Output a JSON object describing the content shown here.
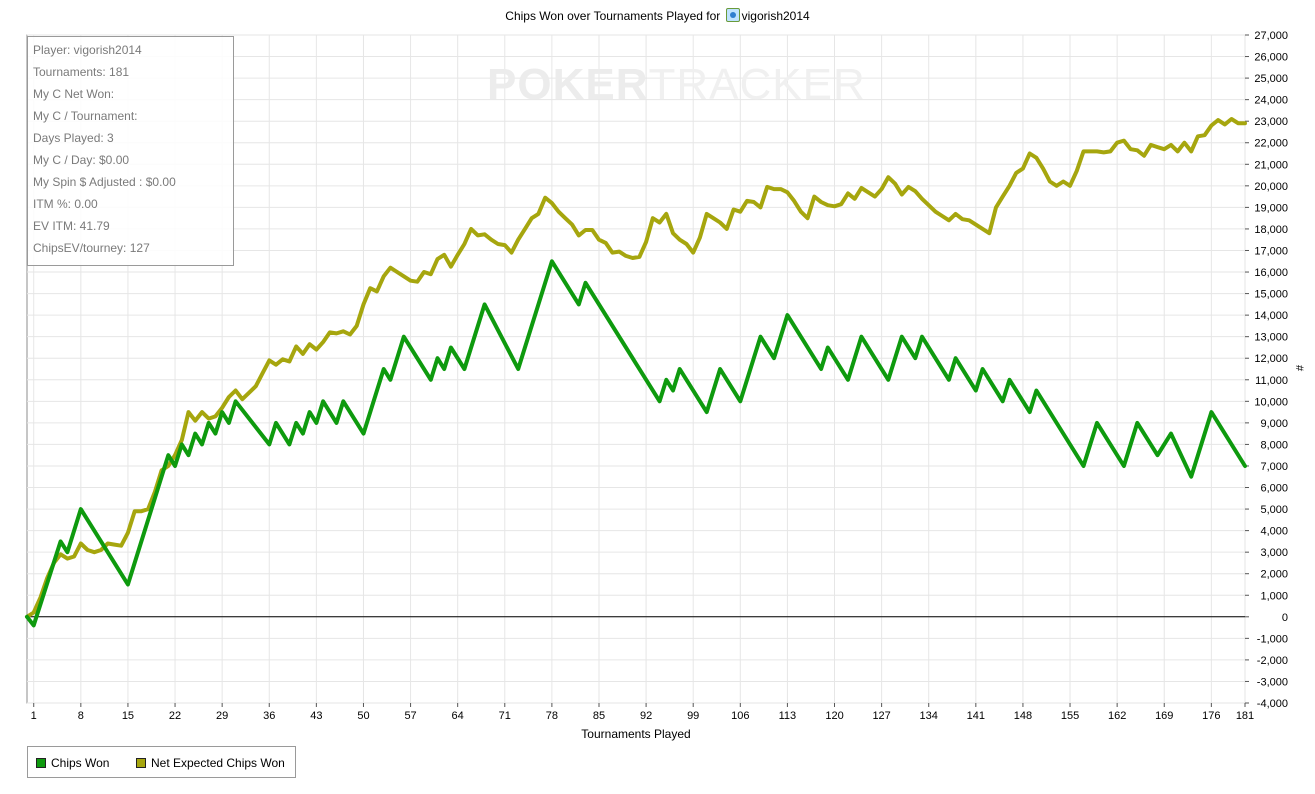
{
  "title": {
    "prefix": "Chips Won over Tournaments Played for",
    "player": "vigorish2014"
  },
  "stats": [
    "Player: vigorish2014",
    "Tournaments: 181",
    "My C Net Won:",
    "My C / Tournament:",
    "Days Played: 3",
    "My C / Day: $0.00",
    "My Spin $ Adjusted : $0.00",
    "ITM %: 0.00",
    "EV ITM: 41.79",
    "ChipsEV/tourney: 127"
  ],
  "watermark": {
    "bold": "POKER",
    "light": "TRACKER"
  },
  "legend": {
    "chips_won": "Chips Won",
    "net_expected": "Net Expected Chips Won"
  },
  "colors": {
    "chips_won": "#0e9a0e",
    "net_expected": "#a6a60e",
    "grid": "#e6e6e6",
    "zero_line": "#000000"
  },
  "chart_data": {
    "type": "line",
    "title": "Chips Won over Tournaments Played for vigorish2014",
    "xlabel": "Tournaments Played",
    "ylabel": "#",
    "xlim": [
      0,
      181
    ],
    "ylim": [
      -4000,
      27000
    ],
    "x_ticks": [
      1,
      8,
      15,
      22,
      29,
      36,
      43,
      50,
      57,
      64,
      71,
      78,
      85,
      92,
      99,
      106,
      113,
      120,
      127,
      134,
      141,
      148,
      155,
      162,
      169,
      176,
      181
    ],
    "y_ticks": [
      "-4,000",
      "-3,000",
      "-2,000",
      "-1,000",
      "0",
      "1,000",
      "2,000",
      "3,000",
      "4,000",
      "5,000",
      "6,000",
      "7,000",
      "8,000",
      "9,000",
      "10,000",
      "11,000",
      "12,000",
      "13,000",
      "14,000",
      "15,000",
      "16,000",
      "17,000",
      "18,000",
      "19,000",
      "20,000",
      "21,000",
      "22,000",
      "23,000",
      "24,000",
      "25,000",
      "26,000",
      "27,000"
    ],
    "grid": true,
    "legend_position": "bottom-left",
    "series": [
      {
        "name": "Chips Won",
        "color": "#0e9a0e",
        "points": [
          [
            0,
            0
          ],
          [
            1,
            -400
          ],
          [
            5,
            3500
          ],
          [
            6,
            3000
          ],
          [
            8,
            5000
          ],
          [
            15,
            1500
          ],
          [
            21,
            7500
          ],
          [
            22,
            7000
          ],
          [
            23,
            8000
          ],
          [
            24,
            7500
          ],
          [
            25,
            8500
          ],
          [
            26,
            8000
          ],
          [
            27,
            9000
          ],
          [
            28,
            8500
          ],
          [
            29,
            9500
          ],
          [
            30,
            9000
          ],
          [
            31,
            10000
          ],
          [
            36,
            8000
          ],
          [
            37,
            9000
          ],
          [
            39,
            8000
          ],
          [
            40,
            9000
          ],
          [
            41,
            8500
          ],
          [
            42,
            9500
          ],
          [
            43,
            9000
          ],
          [
            44,
            10000
          ],
          [
            46,
            9000
          ],
          [
            47,
            10000
          ],
          [
            50,
            8500
          ],
          [
            53,
            11500
          ],
          [
            54,
            11000
          ],
          [
            56,
            13000
          ],
          [
            60,
            11000
          ],
          [
            61,
            12000
          ],
          [
            62,
            11500
          ],
          [
            63,
            12500
          ],
          [
            65,
            11500
          ],
          [
            68,
            14500
          ],
          [
            73,
            11500
          ],
          [
            78,
            16500
          ],
          [
            82,
            14500
          ],
          [
            83,
            15500
          ],
          [
            94,
            10000
          ],
          [
            95,
            11000
          ],
          [
            96,
            10500
          ],
          [
            97,
            11500
          ],
          [
            101,
            9500
          ],
          [
            103,
            11500
          ],
          [
            106,
            10000
          ],
          [
            109,
            13000
          ],
          [
            111,
            12000
          ],
          [
            113,
            14000
          ],
          [
            118,
            11500
          ],
          [
            119,
            12500
          ],
          [
            122,
            11000
          ],
          [
            124,
            13000
          ],
          [
            128,
            11000
          ],
          [
            130,
            13000
          ],
          [
            132,
            12000
          ],
          [
            133,
            13000
          ],
          [
            137,
            11000
          ],
          [
            138,
            12000
          ],
          [
            141,
            10500
          ],
          [
            142,
            11500
          ],
          [
            145,
            10000
          ],
          [
            146,
            11000
          ],
          [
            149,
            9500
          ],
          [
            150,
            10500
          ],
          [
            157,
            7000
          ],
          [
            159,
            9000
          ],
          [
            163,
            7000
          ],
          [
            165,
            9000
          ],
          [
            168,
            7500
          ],
          [
            170,
            8500
          ],
          [
            173,
            6500
          ],
          [
            176,
            9500
          ],
          [
            181,
            7000
          ]
        ]
      },
      {
        "name": "Net Expected Chips Won",
        "color": "#a6a60e",
        "points": [
          [
            0,
            0
          ],
          [
            1,
            200
          ],
          [
            2,
            900
          ],
          [
            3,
            1800
          ],
          [
            4,
            2500
          ],
          [
            5,
            2900
          ],
          [
            6,
            2700
          ],
          [
            7,
            2800
          ],
          [
            8,
            3400
          ],
          [
            9,
            3100
          ],
          [
            10,
            3000
          ],
          [
            11,
            3100
          ],
          [
            12,
            3400
          ],
          [
            13,
            3350
          ],
          [
            14,
            3300
          ],
          [
            15,
            3900
          ],
          [
            16,
            4900
          ],
          [
            17,
            4900
          ],
          [
            18,
            5000
          ],
          [
            19,
            5800
          ],
          [
            20,
            6800
          ],
          [
            21,
            7000
          ],
          [
            22,
            7500
          ],
          [
            23,
            8200
          ],
          [
            24,
            9500
          ],
          [
            25,
            9100
          ],
          [
            26,
            9500
          ],
          [
            27,
            9200
          ],
          [
            28,
            9300
          ],
          [
            29,
            9700
          ],
          [
            30,
            10200
          ],
          [
            31,
            10500
          ],
          [
            32,
            10100
          ],
          [
            33,
            10400
          ],
          [
            34,
            10700
          ],
          [
            35,
            11300
          ],
          [
            36,
            11900
          ],
          [
            37,
            11700
          ],
          [
            38,
            11950
          ],
          [
            39,
            11850
          ],
          [
            40,
            12550
          ],
          [
            41,
            12200
          ],
          [
            42,
            12650
          ],
          [
            43,
            12400
          ],
          [
            44,
            12750
          ],
          [
            45,
            13200
          ],
          [
            46,
            13150
          ],
          [
            47,
            13250
          ],
          [
            48,
            13100
          ],
          [
            49,
            13500
          ],
          [
            50,
            14500
          ],
          [
            51,
            15250
          ],
          [
            52,
            15100
          ],
          [
            53,
            15800
          ],
          [
            54,
            16200
          ],
          [
            55,
            16000
          ],
          [
            56,
            15800
          ],
          [
            57,
            15600
          ],
          [
            58,
            15550
          ],
          [
            59,
            16000
          ],
          [
            60,
            15900
          ],
          [
            61,
            16600
          ],
          [
            62,
            16800
          ],
          [
            63,
            16250
          ],
          [
            64,
            16800
          ],
          [
            65,
            17300
          ],
          [
            66,
            18000
          ],
          [
            67,
            17700
          ],
          [
            68,
            17750
          ],
          [
            69,
            17500
          ],
          [
            70,
            17300
          ],
          [
            71,
            17250
          ],
          [
            72,
            16900
          ],
          [
            73,
            17500
          ],
          [
            74,
            18000
          ],
          [
            75,
            18500
          ],
          [
            76,
            18700
          ],
          [
            77,
            19450
          ],
          [
            78,
            19200
          ],
          [
            79,
            18800
          ],
          [
            80,
            18500
          ],
          [
            81,
            18200
          ],
          [
            82,
            17700
          ],
          [
            83,
            17950
          ],
          [
            84,
            17950
          ],
          [
            85,
            17500
          ],
          [
            86,
            17350
          ],
          [
            87,
            16900
          ],
          [
            88,
            16950
          ],
          [
            89,
            16750
          ],
          [
            90,
            16650
          ],
          [
            91,
            16700
          ],
          [
            92,
            17400
          ],
          [
            93,
            18500
          ],
          [
            94,
            18300
          ],
          [
            95,
            18700
          ],
          [
            96,
            17800
          ],
          [
            97,
            17500
          ],
          [
            98,
            17300
          ],
          [
            99,
            16900
          ],
          [
            100,
            17600
          ],
          [
            101,
            18700
          ],
          [
            102,
            18500
          ],
          [
            103,
            18300
          ],
          [
            104,
            18000
          ],
          [
            105,
            18900
          ],
          [
            106,
            18800
          ],
          [
            107,
            19300
          ],
          [
            108,
            19250
          ],
          [
            109,
            19000
          ],
          [
            110,
            19950
          ],
          [
            111,
            19850
          ],
          [
            112,
            19850
          ],
          [
            113,
            19700
          ],
          [
            114,
            19300
          ],
          [
            115,
            18800
          ],
          [
            116,
            18500
          ],
          [
            117,
            19500
          ],
          [
            118,
            19250
          ],
          [
            119,
            19100
          ],
          [
            120,
            19050
          ],
          [
            121,
            19150
          ],
          [
            122,
            19650
          ],
          [
            123,
            19400
          ],
          [
            124,
            19900
          ],
          [
            125,
            19700
          ],
          [
            126,
            19500
          ],
          [
            127,
            19850
          ],
          [
            128,
            20400
          ],
          [
            129,
            20100
          ],
          [
            130,
            19600
          ],
          [
            131,
            19950
          ],
          [
            132,
            19750
          ],
          [
            133,
            19400
          ],
          [
            134,
            19100
          ],
          [
            135,
            18800
          ],
          [
            136,
            18600
          ],
          [
            137,
            18400
          ],
          [
            138,
            18700
          ],
          [
            139,
            18450
          ],
          [
            140,
            18400
          ],
          [
            141,
            18200
          ],
          [
            142,
            18000
          ],
          [
            143,
            17800
          ],
          [
            144,
            19000
          ],
          [
            145,
            19500
          ],
          [
            146,
            20000
          ],
          [
            147,
            20600
          ],
          [
            148,
            20800
          ],
          [
            149,
            21500
          ],
          [
            150,
            21300
          ],
          [
            151,
            20800
          ],
          [
            152,
            20200
          ],
          [
            153,
            20000
          ],
          [
            154,
            20200
          ],
          [
            155,
            20000
          ],
          [
            156,
            20700
          ],
          [
            157,
            21600
          ],
          [
            158,
            21600
          ],
          [
            159,
            21600
          ],
          [
            160,
            21550
          ],
          [
            161,
            21600
          ],
          [
            162,
            22000
          ],
          [
            163,
            22100
          ],
          [
            164,
            21700
          ],
          [
            165,
            21650
          ],
          [
            166,
            21400
          ],
          [
            167,
            21900
          ],
          [
            168,
            21800
          ],
          [
            169,
            21700
          ],
          [
            170,
            21900
          ],
          [
            171,
            21600
          ],
          [
            172,
            22000
          ],
          [
            173,
            21600
          ],
          [
            174,
            22300
          ],
          [
            175,
            22350
          ],
          [
            176,
            22800
          ],
          [
            177,
            23050
          ],
          [
            178,
            22850
          ],
          [
            179,
            23100
          ],
          [
            180,
            22900
          ],
          [
            181,
            22900
          ]
        ]
      }
    ]
  }
}
